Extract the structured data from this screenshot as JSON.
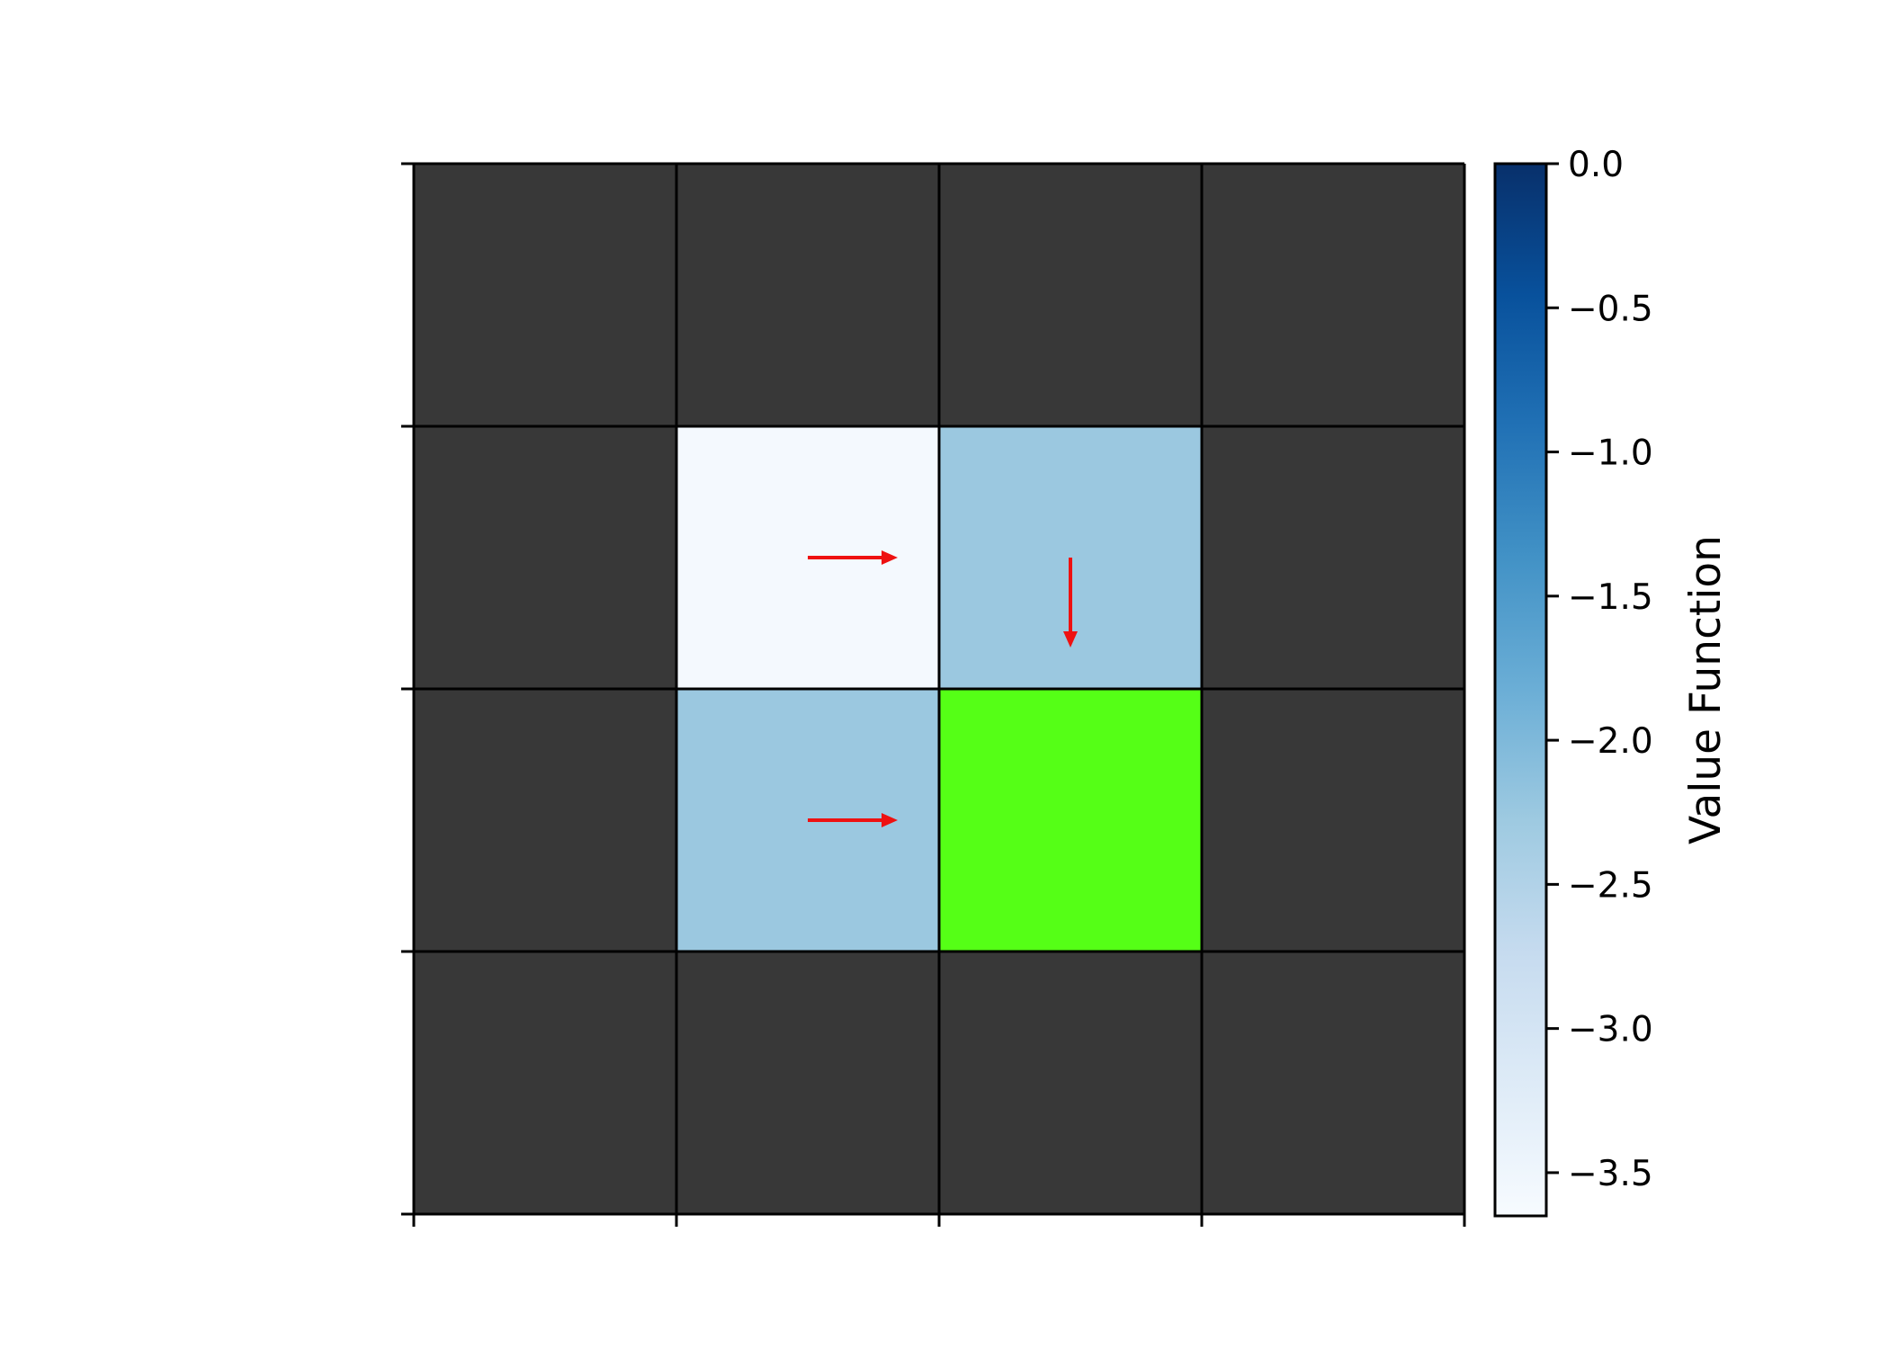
{
  "chart_data": {
    "type": "heatmap",
    "title": "",
    "rows": 4,
    "cols": 4,
    "cells": [
      [
        null,
        null,
        null,
        null
      ],
      [
        null,
        -3.6,
        -2.25,
        null
      ],
      [
        null,
        -2.25,
        "goal",
        null
      ],
      [
        null,
        null,
        null,
        null
      ]
    ],
    "cell_kinds": [
      [
        "wall",
        "wall",
        "wall",
        "wall"
      ],
      [
        "wall",
        "value",
        "value",
        "wall"
      ],
      [
        "wall",
        "value",
        "goal",
        "wall"
      ],
      [
        "wall",
        "wall",
        "wall",
        "wall"
      ]
    ],
    "policy_arrows": [
      {
        "row": 1,
        "col": 1,
        "direction": "right"
      },
      {
        "row": 1,
        "col": 2,
        "direction": "down"
      },
      {
        "row": 2,
        "col": 1,
        "direction": "right"
      }
    ],
    "wall_color": "#383838",
    "goal_color": "#55ff16",
    "arrow_color": "#ee1111",
    "grid": true,
    "x_ticks_labeled": false,
    "y_ticks_labeled": false,
    "colorbar": {
      "label": "Value Function",
      "colormap": "Blues",
      "vmin": -3.65,
      "vmax": 0.0,
      "ticks": [
        0.0,
        -0.5,
        -1.0,
        -1.5,
        -2.0,
        -2.5,
        -3.0,
        -3.5
      ],
      "tick_labels": [
        "0.0",
        "−0.5",
        "−1.0",
        "−1.5",
        "−2.0",
        "−2.5",
        "−3.0",
        "−3.5"
      ]
    }
  }
}
